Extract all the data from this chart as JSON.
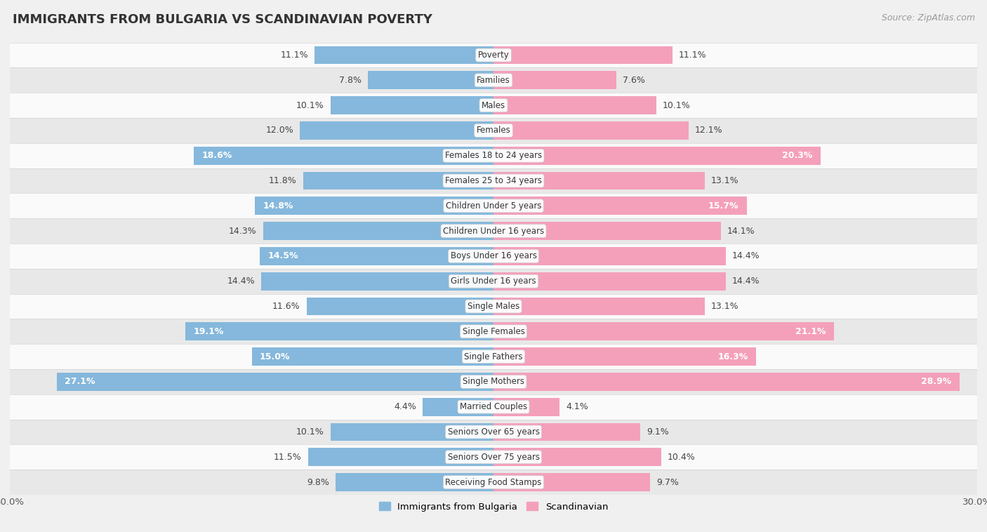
{
  "title": "IMMIGRANTS FROM BULGARIA VS SCANDINAVIAN POVERTY",
  "source": "Source: ZipAtlas.com",
  "categories": [
    "Poverty",
    "Families",
    "Males",
    "Females",
    "Females 18 to 24 years",
    "Females 25 to 34 years",
    "Children Under 5 years",
    "Children Under 16 years",
    "Boys Under 16 years",
    "Girls Under 16 years",
    "Single Males",
    "Single Females",
    "Single Fathers",
    "Single Mothers",
    "Married Couples",
    "Seniors Over 65 years",
    "Seniors Over 75 years",
    "Receiving Food Stamps"
  ],
  "bulgaria_values": [
    11.1,
    7.8,
    10.1,
    12.0,
    18.6,
    11.8,
    14.8,
    14.3,
    14.5,
    14.4,
    11.6,
    19.1,
    15.0,
    27.1,
    4.4,
    10.1,
    11.5,
    9.8
  ],
  "scandinavian_values": [
    11.1,
    7.6,
    10.1,
    12.1,
    20.3,
    13.1,
    15.7,
    14.1,
    14.4,
    14.4,
    13.1,
    21.1,
    16.3,
    28.9,
    4.1,
    9.1,
    10.4,
    9.7
  ],
  "bulgaria_color": "#85b8dc",
  "scandinavian_color": "#f4a0ba",
  "bg_color": "#f0f0f0",
  "row_color_light": "#fafafa",
  "row_color_dark": "#e8e8e8",
  "xlim": 30.0,
  "bar_height": 0.72,
  "label_threshold": 14.5,
  "legend_label_bulgaria": "Immigrants from Bulgaria",
  "legend_label_scandinavian": "Scandinavian",
  "label_fontsize": 9.0,
  "category_fontsize": 8.5,
  "title_fontsize": 13,
  "source_fontsize": 9
}
